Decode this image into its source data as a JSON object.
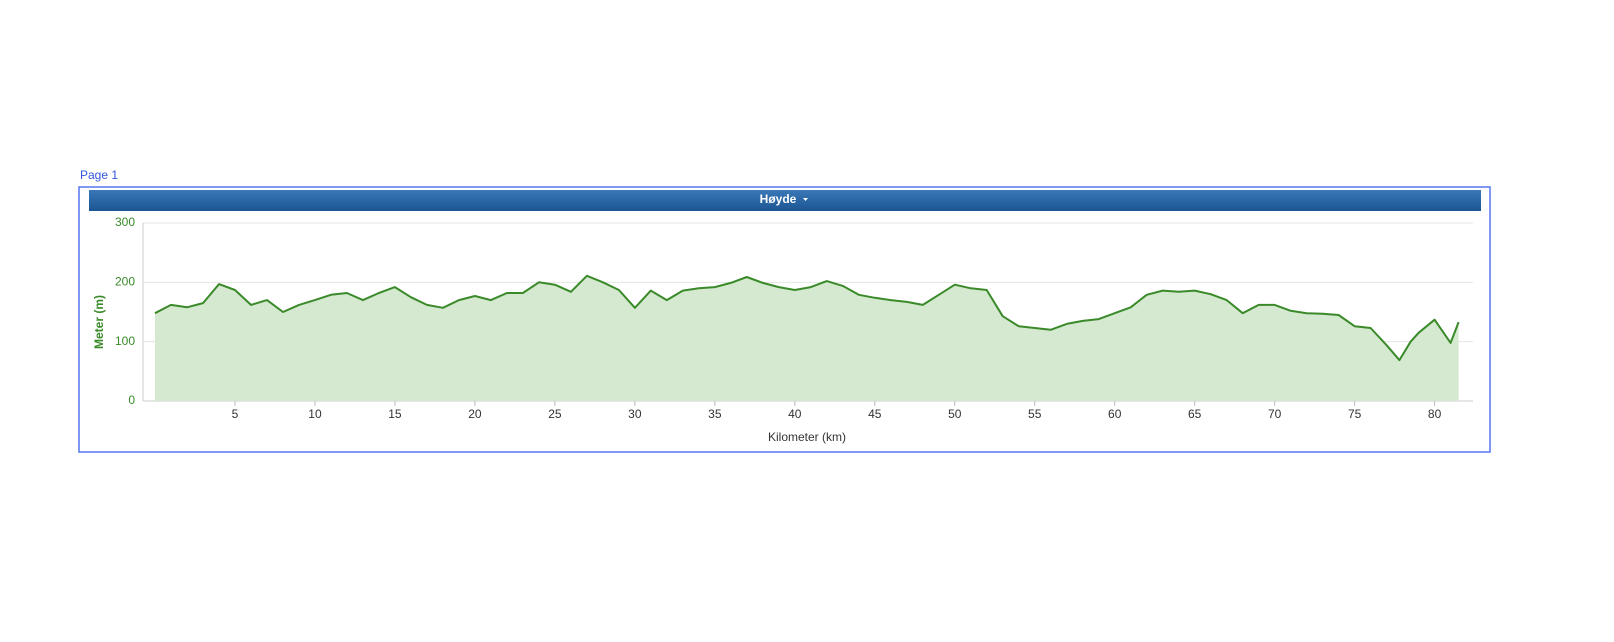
{
  "page_label": "Page 1",
  "header_title": "Høyde",
  "chart_data": {
    "type": "area",
    "xlabel": "Kilometer (km)",
    "ylabel": "Meter (m)",
    "x": [
      0,
      1,
      2,
      3,
      4,
      5,
      6,
      7,
      8,
      9,
      10,
      11,
      12,
      13,
      14,
      15,
      16,
      17,
      18,
      19,
      20,
      21,
      22,
      23,
      24,
      25,
      26,
      27,
      28,
      29,
      30,
      31,
      32,
      33,
      34,
      35,
      36,
      37,
      38,
      39,
      40,
      41,
      42,
      43,
      44,
      45,
      46,
      47,
      48,
      49,
      50,
      51,
      52,
      53,
      54,
      55,
      56,
      57,
      58,
      59,
      60,
      61,
      62,
      63,
      64,
      65,
      66,
      67,
      68,
      69,
      70,
      71,
      72,
      73,
      74,
      75,
      76,
      77,
      77.8,
      78.5,
      79,
      80,
      81,
      81.5
    ],
    "values": [
      148,
      162,
      158,
      165,
      197,
      187,
      162,
      170,
      150,
      162,
      170,
      179,
      182,
      170,
      182,
      192,
      175,
      162,
      157,
      170,
      177,
      170,
      182,
      182,
      200,
      196,
      184,
      211,
      200,
      187,
      157,
      186,
      170,
      186,
      190,
      192,
      199,
      209,
      199,
      192,
      187,
      192,
      202,
      194,
      179,
      174,
      170,
      167,
      162,
      179,
      196,
      190,
      187,
      143,
      126,
      123,
      120,
      130,
      135,
      138,
      148,
      158,
      179,
      186,
      184,
      186,
      180,
      170,
      148,
      162,
      162,
      152,
      148,
      147,
      145,
      126,
      123,
      94,
      69,
      100,
      115,
      137,
      98,
      133
    ],
    "color": "#3a8a2a",
    "fill": "#d4e9cf",
    "xlim": [
      -0.75,
      82.4
    ],
    "xticks": [
      5,
      10,
      15,
      20,
      25,
      30,
      35,
      40,
      45,
      50,
      55,
      60,
      65,
      70,
      75,
      80
    ],
    "ylim": [
      0,
      300
    ],
    "yticks": [
      0,
      100,
      200,
      300
    ],
    "grid": true
  }
}
